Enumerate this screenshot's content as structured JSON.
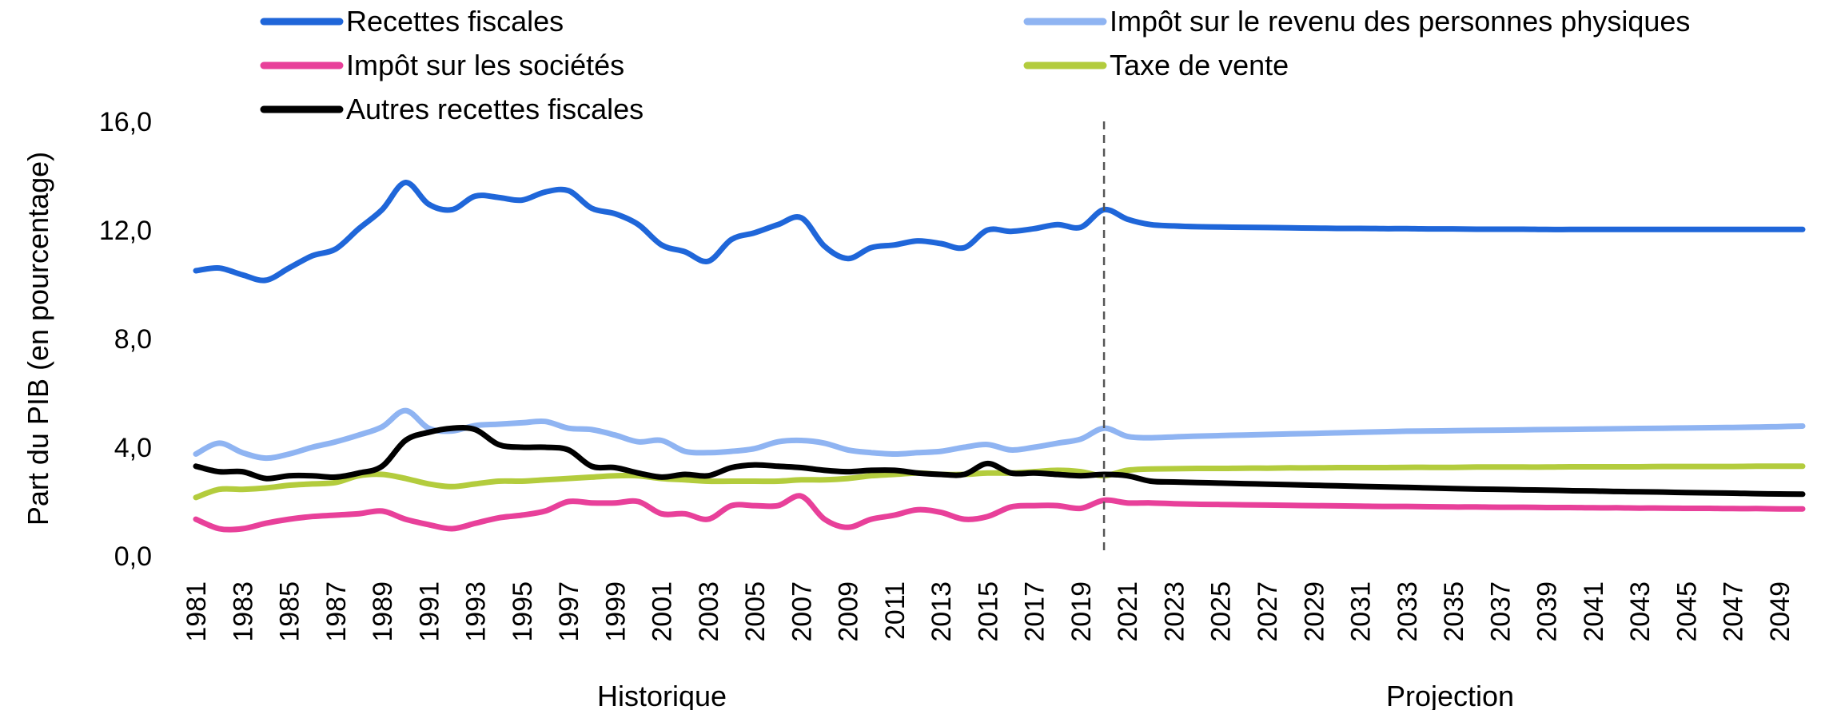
{
  "chart_data": {
    "type": "line",
    "ylabel": "Part du PIB (en pourcentage)",
    "ylim": [
      0,
      16
    ],
    "yticks": [
      "0,0",
      "4,0",
      "8,0",
      "12,0",
      "16,0"
    ],
    "ytick_values": [
      0,
      4,
      8,
      12,
      16
    ],
    "x": [
      1981,
      1982,
      1983,
      1984,
      1985,
      1986,
      1987,
      1988,
      1989,
      1990,
      1991,
      1992,
      1993,
      1994,
      1995,
      1996,
      1997,
      1998,
      1999,
      2000,
      2001,
      2002,
      2003,
      2004,
      2005,
      2006,
      2007,
      2008,
      2009,
      2010,
      2011,
      2012,
      2013,
      2014,
      2015,
      2016,
      2017,
      2018,
      2019,
      2020,
      2021,
      2022,
      2023,
      2024,
      2025,
      2026,
      2027,
      2028,
      2029,
      2030,
      2031,
      2032,
      2033,
      2034,
      2035,
      2036,
      2037,
      2038,
      2039,
      2040,
      2041,
      2042,
      2043,
      2044,
      2045,
      2046,
      2047,
      2048,
      2049,
      2050
    ],
    "xticks": [
      "1981",
      "1983",
      "1985",
      "1987",
      "1989",
      "1991",
      "1993",
      "1995",
      "1997",
      "1999",
      "2001",
      "2003",
      "2005",
      "2007",
      "2009",
      "2011",
      "2013",
      "2015",
      "2017",
      "2019",
      "2021",
      "2023",
      "2025",
      "2027",
      "2029",
      "2031",
      "2033",
      "2035",
      "2037",
      "2039",
      "2041",
      "2043",
      "2045",
      "2047",
      "2049"
    ],
    "divider_year": 2020,
    "periods": [
      {
        "label": "Historique"
      },
      {
        "label": "Projection"
      }
    ],
    "grid": false,
    "legend_position": "top",
    "series": [
      {
        "name": "Recettes fiscales",
        "color": "#1f66d9",
        "values": [
          10.5,
          10.6,
          10.35,
          10.15,
          10.6,
          11.05,
          11.3,
          12.05,
          12.75,
          13.75,
          12.95,
          12.75,
          13.25,
          13.2,
          13.1,
          13.4,
          13.45,
          12.8,
          12.6,
          12.2,
          11.45,
          11.2,
          10.85,
          11.65,
          11.9,
          12.2,
          12.45,
          11.4,
          10.95,
          11.35,
          11.45,
          11.6,
          11.5,
          11.35,
          12.0,
          11.95,
          12.05,
          12.2,
          12.1,
          12.75,
          12.4,
          12.2,
          12.15,
          12.12,
          12.11,
          12.1,
          12.09,
          12.08,
          12.07,
          12.06,
          12.06,
          12.05,
          12.05,
          12.04,
          12.04,
          12.03,
          12.03,
          12.03,
          12.02,
          12.02,
          12.02,
          12.02,
          12.02,
          12.02,
          12.02,
          12.02,
          12.02,
          12.02,
          12.02,
          12.02
        ]
      },
      {
        "name": "Impôt sur le revenu des personnes physiques",
        "color": "#8fb4f2",
        "values": [
          3.75,
          4.15,
          3.8,
          3.6,
          3.75,
          4.0,
          4.2,
          4.45,
          4.75,
          5.35,
          4.7,
          4.6,
          4.8,
          4.85,
          4.9,
          4.95,
          4.7,
          4.65,
          4.45,
          4.2,
          4.25,
          3.85,
          3.8,
          3.85,
          3.95,
          4.2,
          4.25,
          4.15,
          3.9,
          3.8,
          3.75,
          3.8,
          3.85,
          4.0,
          4.1,
          3.9,
          4.0,
          4.15,
          4.3,
          4.7,
          4.4,
          4.35,
          4.38,
          4.41,
          4.43,
          4.45,
          4.47,
          4.49,
          4.51,
          4.53,
          4.55,
          4.57,
          4.59,
          4.6,
          4.61,
          4.62,
          4.63,
          4.64,
          4.65,
          4.66,
          4.67,
          4.68,
          4.69,
          4.7,
          4.71,
          4.72,
          4.73,
          4.74,
          4.76,
          4.78
        ]
      },
      {
        "name": "Impôt sur les sociétés",
        "color": "#e8409a",
        "values": [
          1.35,
          1.0,
          1.0,
          1.2,
          1.35,
          1.45,
          1.5,
          1.55,
          1.65,
          1.35,
          1.15,
          1.0,
          1.2,
          1.4,
          1.5,
          1.65,
          2.0,
          1.95,
          1.95,
          2.0,
          1.55,
          1.55,
          1.35,
          1.85,
          1.85,
          1.85,
          2.2,
          1.35,
          1.05,
          1.35,
          1.5,
          1.7,
          1.6,
          1.35,
          1.45,
          1.8,
          1.85,
          1.85,
          1.75,
          2.05,
          1.95,
          1.95,
          1.92,
          1.9,
          1.89,
          1.88,
          1.87,
          1.86,
          1.85,
          1.84,
          1.83,
          1.82,
          1.82,
          1.81,
          1.8,
          1.8,
          1.79,
          1.79,
          1.78,
          1.78,
          1.77,
          1.77,
          1.76,
          1.76,
          1.75,
          1.75,
          1.74,
          1.74,
          1.73,
          1.73
        ]
      },
      {
        "name": "Taxe de vente",
        "color": "#b3cc3d",
        "values": [
          2.15,
          2.45,
          2.45,
          2.5,
          2.6,
          2.65,
          2.7,
          2.95,
          3.0,
          2.85,
          2.65,
          2.55,
          2.65,
          2.75,
          2.75,
          2.8,
          2.85,
          2.9,
          2.95,
          2.95,
          2.85,
          2.8,
          2.75,
          2.75,
          2.75,
          2.75,
          2.8,
          2.8,
          2.85,
          2.95,
          3.0,
          3.05,
          3.0,
          3.0,
          3.05,
          3.05,
          3.1,
          3.15,
          3.1,
          2.95,
          3.15,
          3.2,
          3.21,
          3.22,
          3.22,
          3.23,
          3.23,
          3.24,
          3.24,
          3.25,
          3.25,
          3.25,
          3.26,
          3.26,
          3.26,
          3.27,
          3.27,
          3.27,
          3.27,
          3.28,
          3.28,
          3.28,
          3.28,
          3.29,
          3.29,
          3.29,
          3.29,
          3.3,
          3.3,
          3.3
        ]
      },
      {
        "name": "Autres recettes fiscales",
        "color": "#000000",
        "values": [
          3.3,
          3.1,
          3.1,
          2.85,
          2.95,
          2.95,
          2.9,
          3.05,
          3.3,
          4.25,
          4.55,
          4.7,
          4.65,
          4.1,
          4.0,
          4.0,
          3.9,
          3.3,
          3.25,
          3.05,
          2.9,
          3.0,
          2.95,
          3.25,
          3.35,
          3.3,
          3.25,
          3.15,
          3.1,
          3.15,
          3.15,
          3.05,
          3.0,
          3.0,
          3.4,
          3.05,
          3.05,
          3.0,
          2.95,
          3.0,
          2.95,
          2.75,
          2.72,
          2.7,
          2.68,
          2.66,
          2.64,
          2.62,
          2.6,
          2.58,
          2.56,
          2.54,
          2.52,
          2.5,
          2.48,
          2.46,
          2.45,
          2.43,
          2.42,
          2.4,
          2.39,
          2.37,
          2.36,
          2.35,
          2.33,
          2.32,
          2.31,
          2.29,
          2.28,
          2.27
        ]
      }
    ]
  }
}
